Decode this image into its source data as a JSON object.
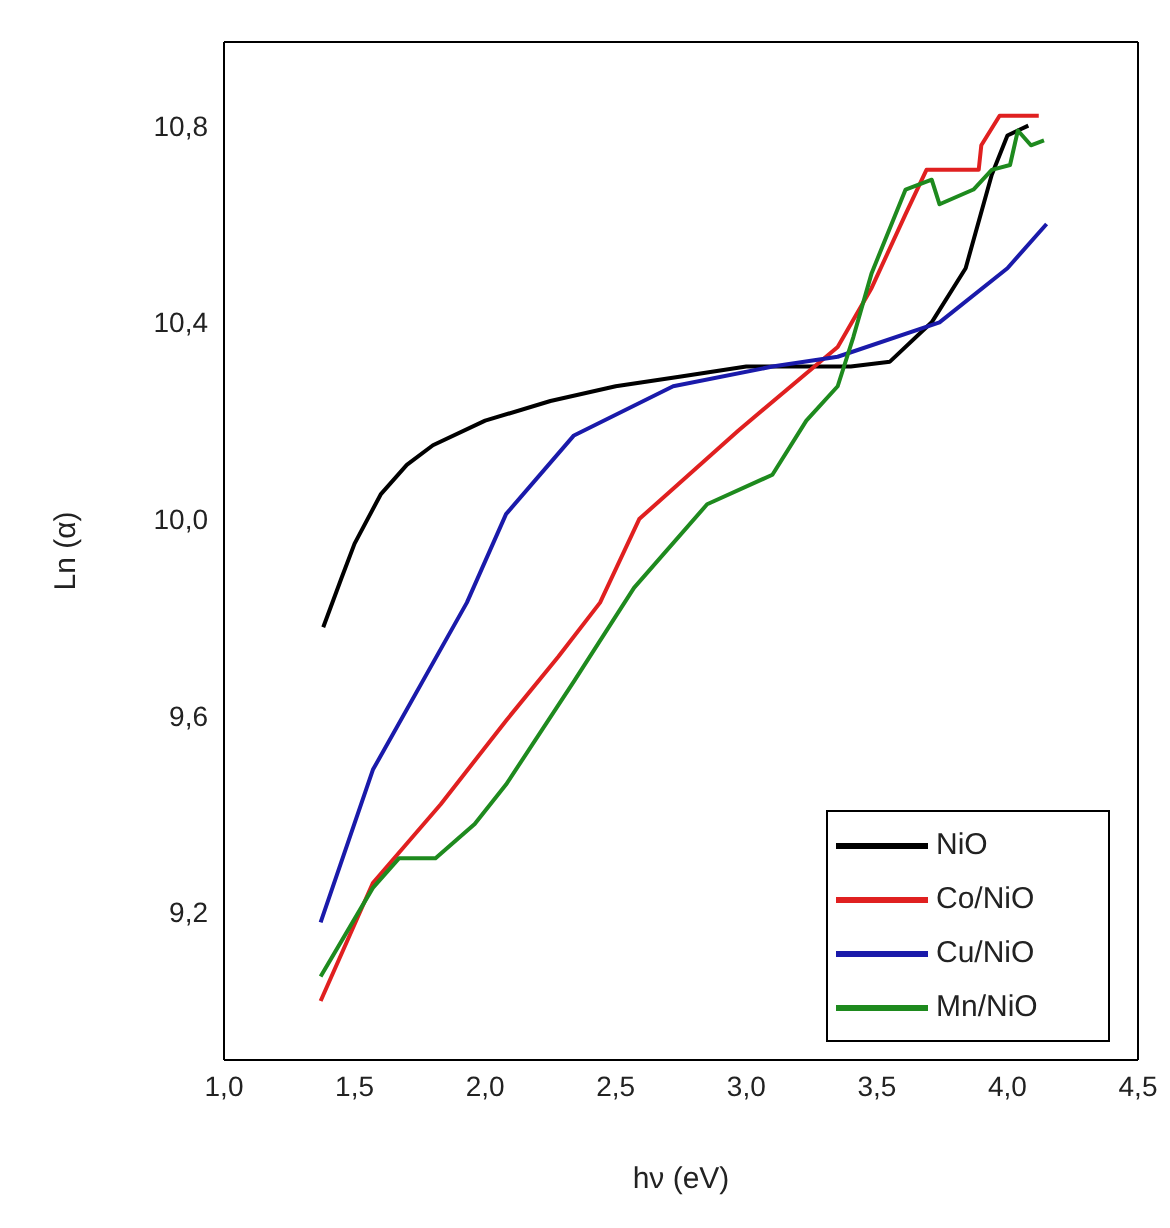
{
  "chart_data": {
    "type": "line",
    "xlabel": "hν (eV)",
    "ylabel": "Ln (α)",
    "xlim": [
      1.0,
      4.5
    ],
    "ylim": [
      8.9,
      10.97
    ],
    "xticks": [
      {
        "value": 1.0,
        "label": "1,0"
      },
      {
        "value": 1.5,
        "label": "1,5"
      },
      {
        "value": 2.0,
        "label": "2,0"
      },
      {
        "value": 2.5,
        "label": "2,5"
      },
      {
        "value": 3.0,
        "label": "3,0"
      },
      {
        "value": 3.5,
        "label": "3,5"
      },
      {
        "value": 4.0,
        "label": "4,0"
      },
      {
        "value": 4.5,
        "label": "4,5"
      }
    ],
    "yticks": [
      {
        "value": 9.2,
        "label": "9,2"
      },
      {
        "value": 9.6,
        "label": "9,6"
      },
      {
        "value": 10.0,
        "label": "10,0"
      },
      {
        "value": 10.4,
        "label": "10,4"
      },
      {
        "value": 10.8,
        "label": "10,8"
      }
    ],
    "grid": false,
    "legend": "bottom right",
    "marker": "none",
    "line_style": "solid",
    "series": [
      {
        "name": "NiO",
        "color": "#000000",
        "x": [
          1.38,
          1.45,
          1.5,
          1.6,
          1.7,
          1.8,
          2.0,
          2.25,
          2.5,
          2.75,
          3.0,
          3.25,
          3.4,
          3.55,
          3.71,
          3.84,
          3.94,
          4.0,
          4.08
        ],
        "values": [
          9.78,
          9.88,
          9.95,
          10.05,
          10.11,
          10.15,
          10.2,
          10.24,
          10.27,
          10.29,
          10.31,
          10.31,
          10.31,
          10.32,
          10.4,
          10.51,
          10.7,
          10.78,
          10.8
        ]
      },
      {
        "name": "Co/NiO",
        "color": "#e02020",
        "x": [
          1.37,
          1.57,
          1.83,
          2.08,
          2.28,
          2.44,
          2.59,
          2.97,
          3.35,
          3.48,
          3.61,
          3.69,
          3.89,
          3.9,
          3.97,
          4.12
        ],
        "values": [
          9.02,
          9.26,
          9.42,
          9.59,
          9.72,
          9.83,
          10.0,
          10.18,
          10.35,
          10.47,
          10.62,
          10.71,
          10.71,
          10.76,
          10.82,
          10.82
        ]
      },
      {
        "name": "Cu/NiO",
        "color": "#1a1aaa",
        "x": [
          1.37,
          1.57,
          1.93,
          2.08,
          2.34,
          2.72,
          3.1,
          3.35,
          3.74,
          4.0,
          4.15
        ],
        "values": [
          9.18,
          9.49,
          9.83,
          10.01,
          10.17,
          10.27,
          10.31,
          10.33,
          10.4,
          10.51,
          10.6
        ]
      },
      {
        "name": "Mn/NiO",
        "color": "#1e8a1e",
        "x": [
          1.37,
          1.57,
          1.67,
          1.81,
          1.96,
          2.08,
          2.34,
          2.57,
          2.85,
          3.1,
          3.23,
          3.35,
          3.41,
          3.48,
          3.61,
          3.71,
          3.74,
          3.87,
          3.94,
          4.01,
          4.04,
          4.09,
          4.14
        ],
        "values": [
          9.07,
          9.25,
          9.31,
          9.31,
          9.38,
          9.46,
          9.67,
          9.86,
          10.03,
          10.09,
          10.2,
          10.27,
          10.37,
          10.5,
          10.67,
          10.69,
          10.64,
          10.67,
          10.71,
          10.72,
          10.79,
          10.76,
          10.77
        ]
      }
    ]
  }
}
